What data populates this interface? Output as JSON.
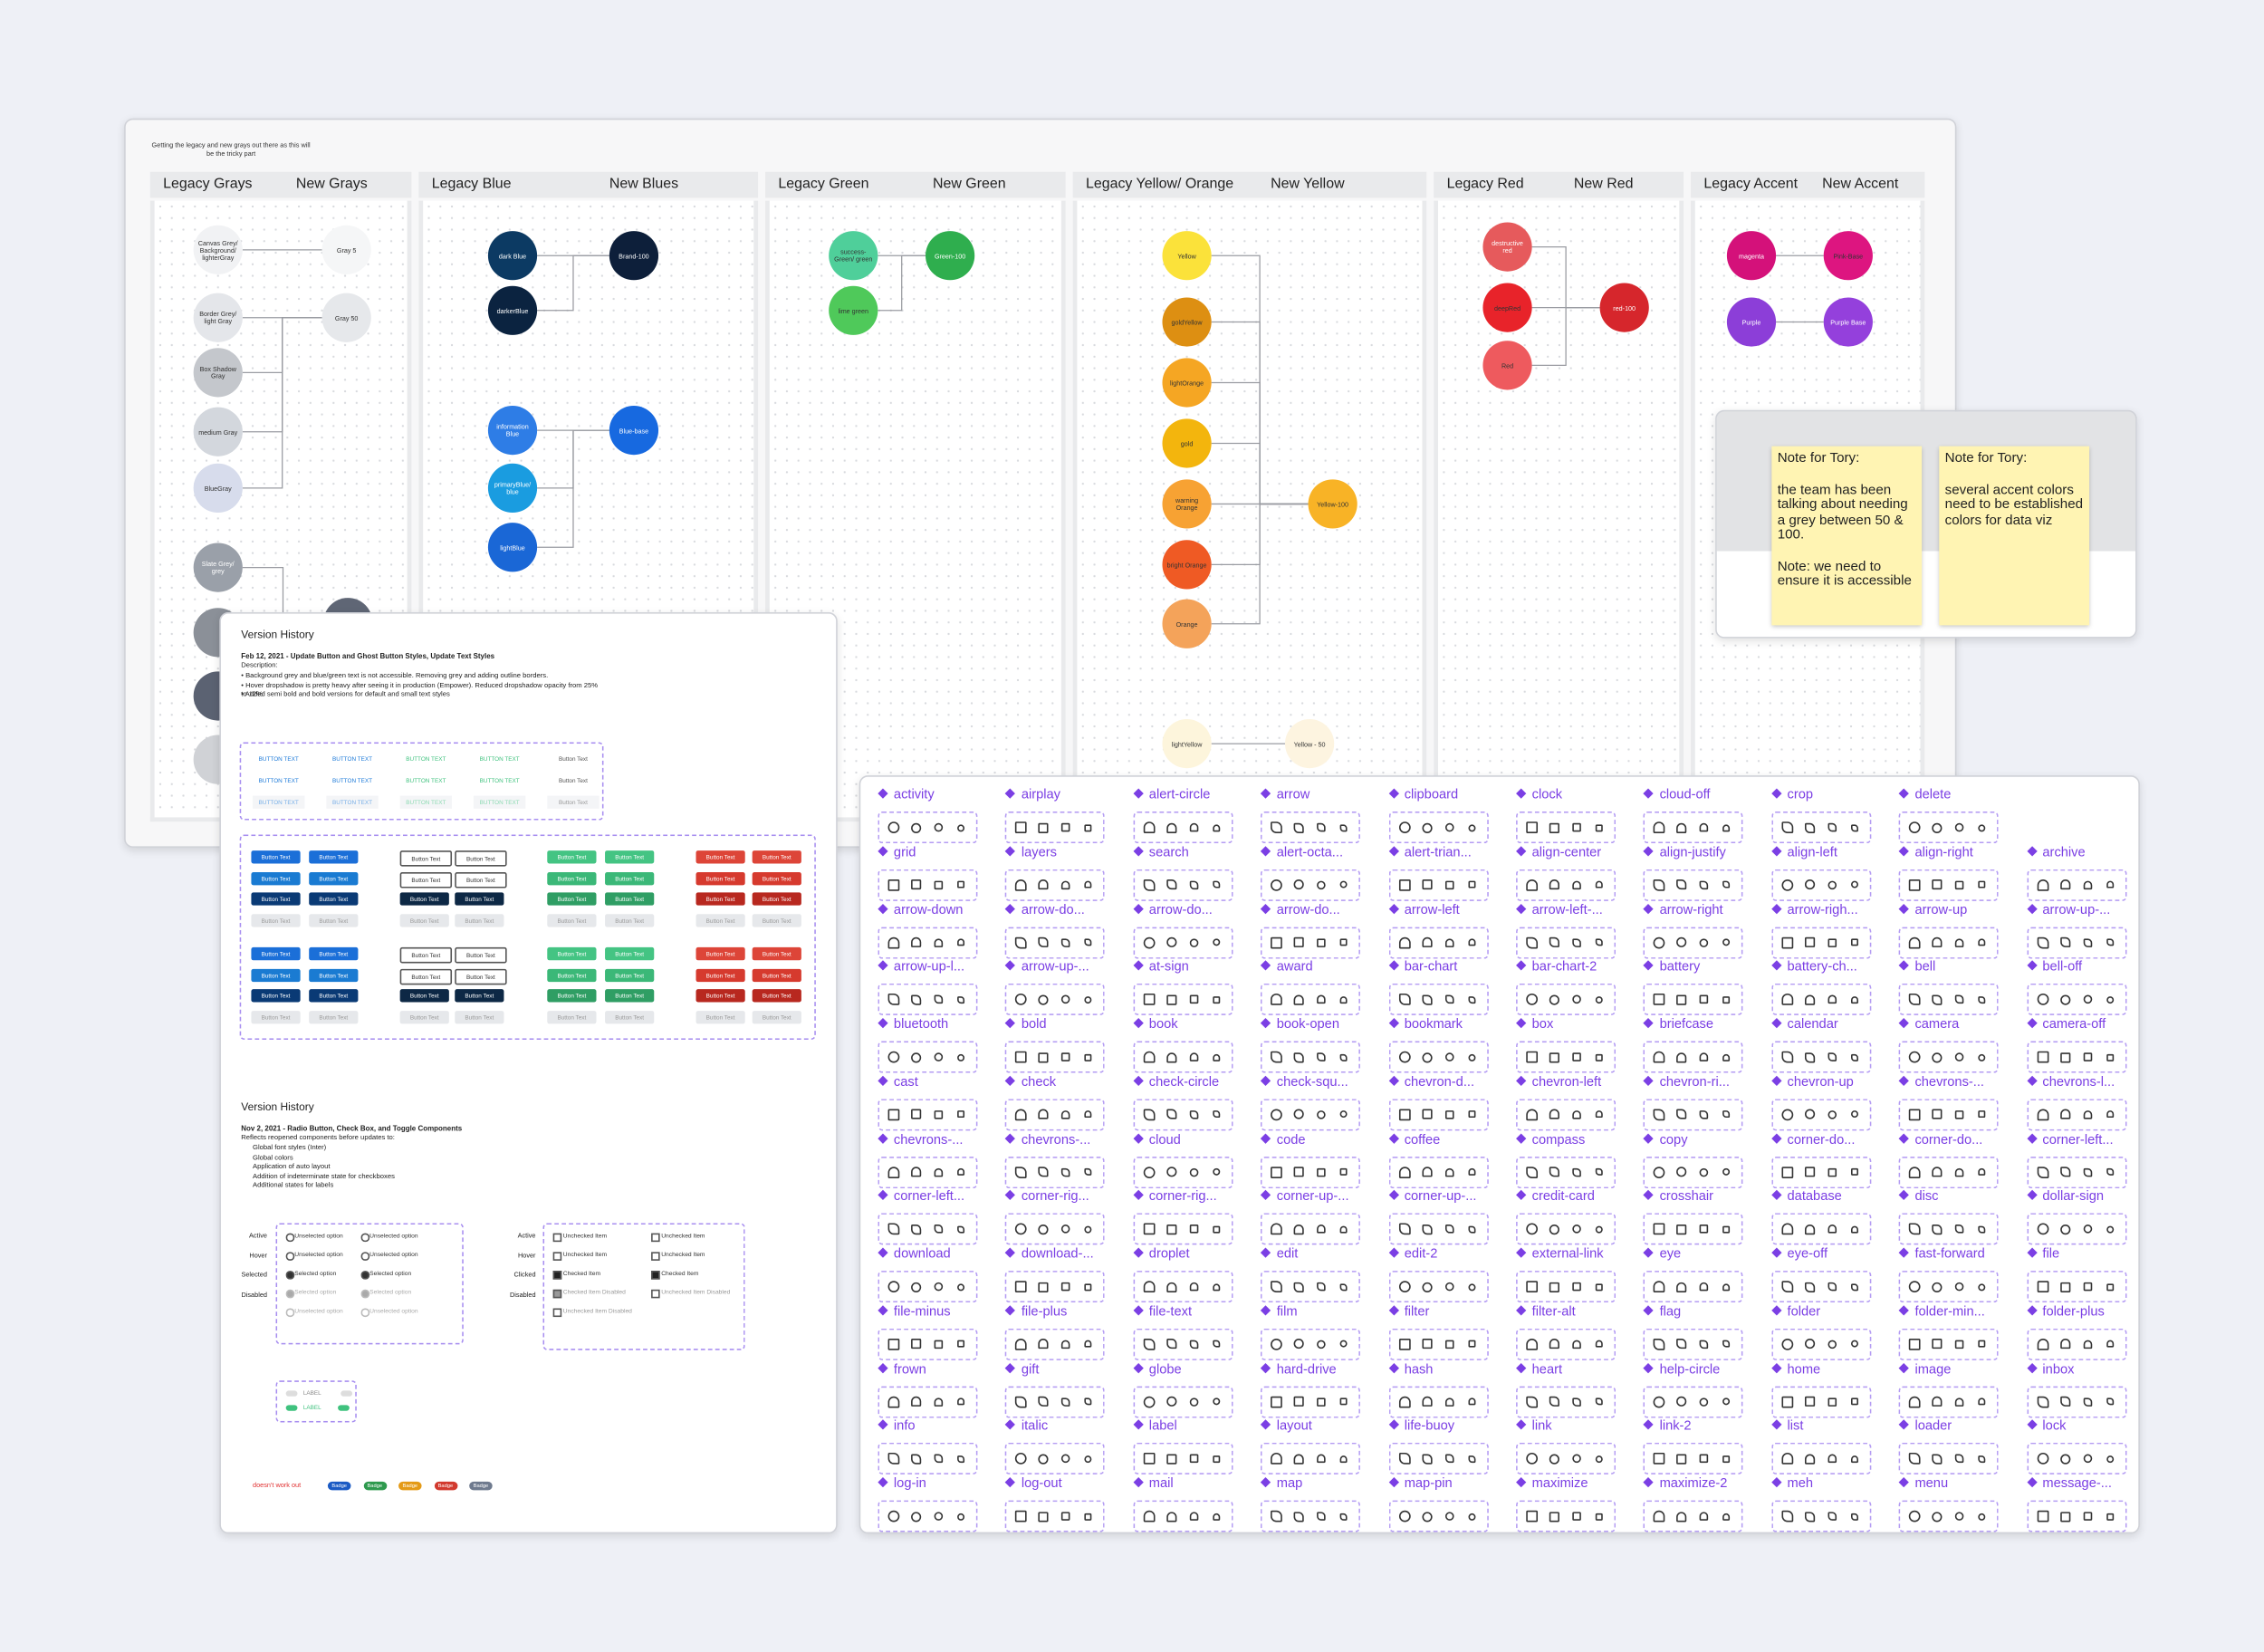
{
  "board": {
    "note": "Getting the legacy and new grays out there as this will be the tricky part",
    "columns": [
      {
        "legacy_title": "Legacy Grays",
        "new_title": "New Grays",
        "mappings": [
          {
            "from": [
              {
                "label": "Canvas Grey/ Background/ lighterGray",
                "color": "#f1f2f4"
              }
            ],
            "to": {
              "label": "Gray 5",
              "color": "#f5f6f7"
            }
          },
          {
            "from": [
              {
                "label": "Border Grey/ light Gray",
                "color": "#e4e6ea"
              },
              {
                "label": "Box Shadow Gray",
                "color": "#c4c7cc"
              },
              {
                "label": "medium Gray",
                "color": "#d3d7dd"
              },
              {
                "label": "BlueGray",
                "color": "#d7dcec"
              }
            ],
            "to": {
              "label": "Gray 50",
              "color": "#e6e8eb"
            }
          },
          {
            "from": [
              {
                "label": "Slate Grey/ grey",
                "color": "#9aa0a9"
              },
              {
                "color": "#8b9098"
              },
              {
                "color": "#5b6272"
              },
              {
                "color": "#d0d2d6"
              }
            ],
            "to": {
              "color": "#5f6675"
            }
          }
        ]
      },
      {
        "legacy_title": "Legacy Blue",
        "new_title": "New Blues",
        "mappings": [
          {
            "from": [
              {
                "label": "dark Blue",
                "color": "#0c3a63"
              },
              {
                "label": "darkerBlue",
                "color": "#0b2340"
              }
            ],
            "to": {
              "label": "Brand-100",
              "color": "#0d1f3a"
            }
          },
          {
            "from": [
              {
                "label": "information Blue",
                "color": "#2e7de6"
              },
              {
                "label": "primaryBlue/ blue",
                "color": "#1a9ce0"
              },
              {
                "label": "lightBlue",
                "color": "#1a67d6"
              }
            ],
            "to": {
              "label": "Blue-base",
              "color": "#1769e0"
            }
          }
        ]
      },
      {
        "legacy_title": "Legacy Green",
        "new_title": "New Green",
        "mappings": [
          {
            "from": [
              {
                "label": "success-Green/ green",
                "color": "#4fcf9a"
              },
              {
                "label": "lime green",
                "color": "#4fc95a"
              }
            ],
            "to": {
              "label": "Green-100",
              "color": "#2fae4e"
            }
          }
        ]
      },
      {
        "legacy_title": "Legacy Yellow/ Orange",
        "new_title": "New Yellow",
        "mappings": [
          {
            "from": [
              {
                "label": "Yellow",
                "color": "#fbe23a"
              },
              {
                "label": "goldYellow",
                "color": "#dd8f12"
              },
              {
                "label": "lightOrange",
                "color": "#f5a623"
              },
              {
                "label": "gold",
                "color": "#f3b50d"
              },
              {
                "label": "warning Orange",
                "color": "#f7a233"
              },
              {
                "label": "bright Orange",
                "color": "#ef5a24"
              },
              {
                "label": "Orange",
                "color": "#f4a35a"
              }
            ],
            "to": {
              "label": "Yellow-100",
              "color": "#f8b326"
            }
          },
          {
            "from": [
              {
                "label": "lightYellow",
                "color": "#fdf5dc"
              }
            ],
            "to": {
              "label": "Yellow - 50",
              "color": "#fdf4e0"
            }
          }
        ]
      },
      {
        "legacy_title": "Legacy Red",
        "new_title": "New Red",
        "mappings": [
          {
            "from": [
              {
                "label": "destructive red",
                "color": "#e65a5c"
              },
              {
                "label": "deepRed",
                "color": "#e8232a"
              },
              {
                "label": "Red",
                "color": "#ee5a5e"
              }
            ],
            "to": {
              "label": "red-100",
              "color": "#d6262c"
            }
          }
        ]
      },
      {
        "legacy_title": "Legacy Accent",
        "new_title": "New Accent",
        "mappings": [
          {
            "from": [
              {
                "label": "magenta",
                "color": "#d4117a"
              }
            ],
            "to": {
              "label": "Pink-Base",
              "color": "#dd1580"
            }
          },
          {
            "from": [
              {
                "label": "Purple",
                "color": "#8c3ed8"
              }
            ],
            "to": {
              "label": "Purple Base",
              "color": "#9440dc"
            }
          }
        ]
      }
    ]
  },
  "stickies": [
    {
      "title": "Note for Tory:",
      "lines": [
        "the team has been talking about needing a grey between 50 & 100.",
        "Note: we need to ensure it is accessible"
      ]
    },
    {
      "title": "Note for Tory:",
      "lines": [
        "several accent colors need to be established colors for data viz"
      ]
    }
  ],
  "versions": [
    {
      "title": "Version History",
      "heading": "Feb 12, 2021 - Update Button and Ghost Button Styles, Update Text Styles",
      "intro": "Description:",
      "items": [
        "• Background grey and blue/green text is not accessible. Removing grey and adding outline borders.",
        "• Hover dropshadow is pretty heavy after seeing it in production (Empower). Reduced dropshadow opacity from 25% to 12%",
        "• Added semi bold and bold versions for default and small text styles"
      ],
      "ghost_label": "BUTTON TEXT",
      "button_label": "Button Text"
    },
    {
      "title": "Version History",
      "heading": "Nov 2, 2021 - Radio Button, Check Box, and Toggle Components",
      "intro": "Reflects reopened components before updates to:",
      "items": [
        "Global font styles (Inter)",
        "Global colors",
        "Application of auto layout",
        "Addition of indeterminate state for checkboxes",
        "Additional states for labels"
      ],
      "radio_states": [
        "Active",
        "Hover",
        "Selected",
        "Disabled"
      ],
      "radio_options": [
        "Unselected option",
        "Selected option"
      ],
      "check_states": [
        "Active",
        "Hover",
        "Clicked",
        "Disabled"
      ],
      "check_options": [
        "Unchecked Item",
        "Checked Item",
        "Checked Item Disabled",
        "Unchecked Item Disabled"
      ],
      "toggle_label": "LABEL",
      "warning": "doesn't work out",
      "badge": "Badge"
    }
  ],
  "icons": [
    [
      "activity",
      "airplay",
      "alert-circle",
      "arrow",
      "clipboard",
      "clock",
      "cloud-off",
      "crop",
      "delete"
    ],
    [
      "grid",
      "layers",
      "search",
      "alert-octa...",
      "alert-trian...",
      "align-center",
      "align-justify",
      "align-left",
      "align-right",
      "archive"
    ],
    [
      "arrow-down",
      "arrow-do...",
      "arrow-do...",
      "arrow-do...",
      "arrow-left",
      "arrow-left-...",
      "arrow-right",
      "arrow-righ...",
      "arrow-up",
      "arrow-up-..."
    ],
    [
      "arrow-up-l...",
      "arrow-up-...",
      "at-sign",
      "award",
      "bar-chart",
      "bar-chart-2",
      "battery",
      "battery-ch...",
      "bell",
      "bell-off"
    ],
    [
      "bluetooth",
      "bold",
      "book",
      "book-open",
      "bookmark",
      "box",
      "briefcase",
      "calendar",
      "camera",
      "camera-off"
    ],
    [
      "cast",
      "check",
      "check-circle",
      "check-squ...",
      "chevron-d...",
      "chevron-left",
      "chevron-ri...",
      "chevron-up",
      "chevrons-...",
      "chevrons-l..."
    ],
    [
      "chevrons-...",
      "chevrons-...",
      "cloud",
      "code",
      "coffee",
      "compass",
      "copy",
      "corner-do...",
      "corner-do...",
      "corner-left..."
    ],
    [
      "corner-left...",
      "corner-rig...",
      "corner-rig...",
      "corner-up-...",
      "corner-up-...",
      "credit-card",
      "crosshair",
      "database",
      "disc",
      "dollar-sign"
    ],
    [
      "download",
      "download-...",
      "droplet",
      "edit",
      "edit-2",
      "external-link",
      "eye",
      "eye-off",
      "fast-forward",
      "file"
    ],
    [
      "file-minus",
      "file-plus",
      "file-text",
      "film",
      "filter",
      "filter-alt",
      "flag",
      "folder",
      "folder-min...",
      "folder-plus"
    ],
    [
      "frown",
      "gift",
      "globe",
      "hard-drive",
      "hash",
      "heart",
      "help-circle",
      "home",
      "image",
      "inbox"
    ],
    [
      "info",
      "italic",
      "label",
      "layout",
      "life-buoy",
      "link",
      "link-2",
      "list",
      "loader",
      "lock"
    ],
    [
      "log-in",
      "log-out",
      "mail",
      "map",
      "map-pin",
      "maximize",
      "maximize-2",
      "meh",
      "menu",
      "message-..."
    ]
  ]
}
